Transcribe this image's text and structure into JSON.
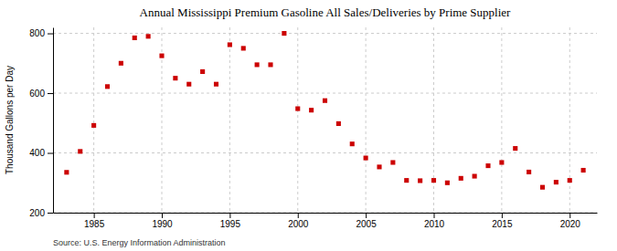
{
  "chart_data": {
    "type": "scatter",
    "title": "Annual Mississippi Premium Gasoline All Sales/Deliveries by Prime Supplier",
    "ylabel": "Thousand Gallons per Day",
    "source": "Source: U.S. Energy Information Administration",
    "x": [
      1983,
      1984,
      1985,
      1986,
      1987,
      1988,
      1989,
      1990,
      1991,
      1992,
      1993,
      1994,
      1995,
      1996,
      1997,
      1998,
      1999,
      2000,
      2001,
      2002,
      2003,
      2004,
      2005,
      2006,
      2007,
      2008,
      2009,
      2010,
      2011,
      2012,
      2013,
      2014,
      2015,
      2016,
      2017,
      2018,
      2019,
      2020,
      2021
    ],
    "values": [
      335,
      405,
      492,
      622,
      700,
      785,
      790,
      725,
      650,
      630,
      672,
      630,
      762,
      750,
      695,
      695,
      800,
      548,
      543,
      575,
      498,
      430,
      383,
      353,
      368,
      308,
      307,
      308,
      300,
      315,
      322,
      357,
      368,
      415,
      336,
      285,
      302,
      308,
      342
    ],
    "color": "#cc0000",
    "marker": "square",
    "xlim": [
      1982,
      2022
    ],
    "xticks": [
      1985,
      1990,
      1995,
      2000,
      2005,
      2010,
      2015,
      2020
    ],
    "ylim": [
      200,
      820
    ],
    "yticks": [
      200,
      400,
      600,
      800
    ],
    "grid": true
  }
}
